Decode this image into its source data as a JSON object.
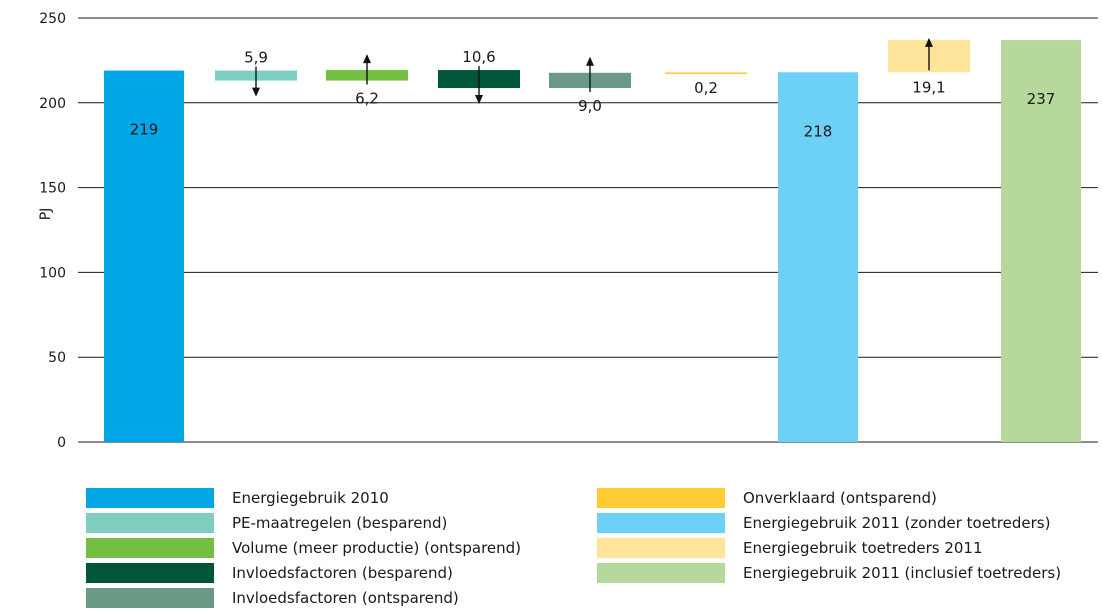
{
  "chart_data": {
    "type": "bar",
    "title": "",
    "xlabel": "",
    "ylabel": "PJ",
    "ylim": [
      0,
      250
    ],
    "yticks": [
      0,
      50,
      100,
      150,
      200,
      250
    ],
    "ytick_labels": [
      "0",
      "50",
      "100",
      "150",
      "200",
      "250"
    ],
    "grid": true,
    "legend_position": "bottom",
    "categories": [
      "Energiegebruik 2010",
      "PE-maatregelen (besparend)",
      "Volume (meer productie) (ontsparend)",
      "Invloedsfactoren (besparend)",
      "Invloedsfactoren (ontsparend)",
      "Onverklaard (ontsparend)",
      "Energiegebruik 2011 (zonder toetreders)",
      "Energiegebruik toetreders 2011",
      "Energiegebruik 2011 (inclusief toetreders)"
    ],
    "bars": [
      {
        "name": "Energiegebruik 2010",
        "start": 0,
        "end": 219,
        "label": "219",
        "color": "#00a6e6",
        "arrow": "none"
      },
      {
        "name": "PE-maatregelen (besparend)",
        "start": 219,
        "end": 213.1,
        "label": "5,9",
        "color": "#7ecfc0",
        "arrow": "down"
      },
      {
        "name": "Volume (meer productie) (ontsparend)",
        "start": 213.1,
        "end": 219.3,
        "label": "6,2",
        "color": "#72bf44",
        "arrow": "up"
      },
      {
        "name": "Invloedsfactoren (besparend)",
        "start": 219.3,
        "end": 208.7,
        "label": "10,6",
        "color": "#00553a",
        "arrow": "down"
      },
      {
        "name": "Invloedsfactoren (ontsparend)",
        "start": 208.7,
        "end": 217.7,
        "label": "9,0",
        "color": "#6a9a85",
        "arrow": "up"
      },
      {
        "name": "Onverklaard (ontsparend)",
        "start": 217.7,
        "end": 217.9,
        "label": "0,2",
        "color": "#ffcc33",
        "arrow": "none"
      },
      {
        "name": "Energiegebruik 2011 (zonder toetreders)",
        "start": 0,
        "end": 218,
        "label": "218",
        "color": "#6dd0f5",
        "arrow": "none"
      },
      {
        "name": "Energiegebruik toetreders 2011",
        "start": 218,
        "end": 237.1,
        "label": "19,1",
        "color": "#fde49a",
        "arrow": "up"
      },
      {
        "name": "Energiegebruik 2011 (inclusief toetreders)",
        "start": 0,
        "end": 237,
        "label": "237",
        "color": "#b5d99c",
        "arrow": "none"
      }
    ],
    "legend": [
      {
        "label": "Energiegebruik 2010",
        "color": "#00a6e6"
      },
      {
        "label": "PE-maatregelen (besparend)",
        "color": "#7ecfc0"
      },
      {
        "label": "Volume (meer productie) (ontsparend)",
        "color": "#72bf44"
      },
      {
        "label": "Invloedsfactoren (besparend)",
        "color": "#00553a"
      },
      {
        "label": "Invloedsfactoren (ontsparend)",
        "color": "#6a9a85"
      },
      {
        "label": "Onverklaard (ontsparend)",
        "color": "#ffcc33"
      },
      {
        "label": "Energiegebruik 2011 (zonder toetreders)",
        "color": "#6dd0f5"
      },
      {
        "label": "Energiegebruik toetreders 2011",
        "color": "#fde49a"
      },
      {
        "label": "Energiegebruik 2011 (inclusief toetreders)",
        "color": "#b5d99c"
      }
    ]
  }
}
